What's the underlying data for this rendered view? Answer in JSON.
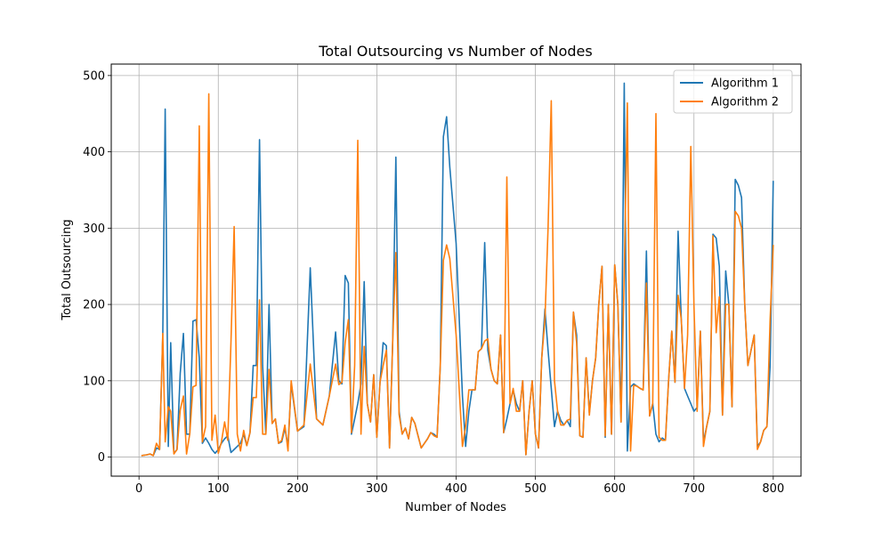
{
  "chart_data": {
    "type": "line",
    "title": "Total Outsourcing vs Number of Nodes",
    "xlabel": "Number of Nodes",
    "ylabel": "Total Outsourcing",
    "xlim": [
      -35,
      835
    ],
    "ylim": [
      -25,
      515
    ],
    "xticks": [
      0,
      100,
      200,
      300,
      400,
      500,
      600,
      700,
      800
    ],
    "yticks": [
      0,
      100,
      200,
      300,
      400,
      500
    ],
    "grid": true,
    "legend_position": "top-right",
    "series": [
      {
        "name": "Algorithm 1",
        "color": "#1f77b4",
        "x": [
          3,
          10,
          14,
          18,
          22,
          26,
          30,
          33,
          37,
          40,
          44,
          48,
          52,
          56,
          60,
          64,
          68,
          72,
          76,
          80,
          84,
          88,
          92,
          96,
          100,
          104,
          108,
          112,
          116,
          120,
          124,
          128,
          132,
          136,
          140,
          144,
          148,
          152,
          156,
          160,
          164,
          168,
          172,
          176,
          180,
          184,
          188,
          192,
          200,
          208,
          216,
          224,
          232,
          240,
          248,
          252,
          256,
          260,
          264,
          268,
          272,
          276,
          280,
          284,
          288,
          292,
          296,
          300,
          304,
          308,
          312,
          316,
          320,
          324,
          328,
          332,
          336,
          340,
          344,
          348,
          352,
          356,
          360,
          364,
          368,
          372,
          376,
          380,
          384,
          388,
          392,
          400,
          408,
          412,
          416,
          420,
          424,
          428,
          432,
          436,
          440,
          444,
          448,
          452,
          456,
          460,
          464,
          468,
          472,
          476,
          480,
          484,
          488,
          492,
          496,
          500,
          504,
          508,
          512,
          516,
          520,
          524,
          528,
          532,
          536,
          540,
          544,
          548,
          552,
          556,
          560,
          564,
          568,
          572,
          576,
          580,
          584,
          588,
          592,
          596,
          600,
          604,
          608,
          612,
          616,
          620,
          624,
          628,
          632,
          636,
          640,
          644,
          648,
          652,
          656,
          660,
          664,
          668,
          672,
          676,
          680,
          684,
          688,
          692,
          696,
          700,
          704,
          708,
          712,
          716,
          720,
          724,
          728,
          732,
          736,
          740,
          744,
          748,
          752,
          756,
          760,
          764,
          768,
          772,
          776,
          780,
          784,
          788,
          792,
          796,
          800
        ],
        "values": [
          2,
          3,
          4,
          2,
          12,
          10,
          160,
          456,
          14,
          150,
          5,
          10,
          110,
          162,
          30,
          30,
          178,
          180,
          130,
          18,
          25,
          18,
          10,
          5,
          10,
          18,
          24,
          28,
          6,
          10,
          14,
          18,
          30,
          15,
          32,
          120,
          120,
          416,
          120,
          30,
          200,
          44,
          50,
          18,
          20,
          38,
          14,
          96,
          34,
          40,
          248,
          50,
          42,
          80,
          164,
          100,
          96,
          238,
          228,
          30,
          50,
          70,
          96,
          230,
          70,
          46,
          108,
          26,
          98,
          150,
          146,
          12,
          150,
          393,
          60,
          30,
          38,
          24,
          52,
          44,
          28,
          12,
          18,
          24,
          32,
          30,
          26,
          120,
          420,
          446,
          380,
          280,
          80,
          14,
          60,
          88,
          88,
          138,
          142,
          281,
          140,
          115,
          100,
          96,
          160,
          32,
          50,
          70,
          88,
          70,
          60,
          100,
          3,
          60,
          100,
          30,
          12,
          130,
          194,
          140,
          90,
          40,
          60,
          48,
          42,
          48,
          40,
          190,
          160,
          28,
          26,
          130,
          58,
          100,
          130,
          200,
          250,
          26,
          200,
          30,
          252,
          200,
          46,
          490,
          8,
          92,
          96,
          93,
          90,
          88,
          270,
          54,
          70,
          30,
          20,
          25,
          22,
          100,
          165,
          98,
          296,
          180,
          90,
          80,
          70,
          60,
          65,
          165,
          20,
          40,
          60,
          292,
          287,
          250,
          55,
          244,
          200,
          66,
          364,
          356,
          340,
          200,
          120,
          140,
          160,
          14,
          20,
          35,
          40,
          120,
          362
        ]
      },
      {
        "name": "Algorithm 2",
        "color": "#ff7f0e",
        "x": [
          3,
          10,
          14,
          18,
          22,
          26,
          30,
          33,
          37,
          40,
          44,
          48,
          52,
          56,
          60,
          64,
          68,
          72,
          76,
          80,
          84,
          88,
          92,
          96,
          100,
          104,
          108,
          112,
          116,
          120,
          124,
          128,
          132,
          136,
          140,
          144,
          148,
          152,
          156,
          160,
          164,
          168,
          172,
          176,
          180,
          184,
          188,
          192,
          200,
          208,
          216,
          224,
          232,
          240,
          248,
          252,
          256,
          260,
          264,
          268,
          272,
          276,
          280,
          284,
          288,
          292,
          296,
          300,
          304,
          308,
          312,
          316,
          320,
          324,
          328,
          332,
          336,
          340,
          344,
          348,
          352,
          356,
          360,
          364,
          368,
          372,
          376,
          380,
          384,
          388,
          392,
          400,
          408,
          412,
          416,
          420,
          424,
          428,
          432,
          436,
          440,
          444,
          448,
          452,
          456,
          460,
          464,
          468,
          472,
          476,
          480,
          484,
          488,
          492,
          496,
          500,
          504,
          508,
          512,
          516,
          520,
          524,
          528,
          532,
          536,
          540,
          544,
          548,
          552,
          556,
          560,
          564,
          568,
          572,
          576,
          580,
          584,
          588,
          592,
          596,
          600,
          604,
          608,
          612,
          616,
          620,
          624,
          628,
          632,
          636,
          640,
          644,
          648,
          652,
          656,
          660,
          664,
          668,
          672,
          676,
          680,
          684,
          688,
          692,
          696,
          700,
          704,
          708,
          712,
          716,
          720,
          724,
          728,
          732,
          736,
          740,
          744,
          748,
          752,
          756,
          760,
          764,
          768,
          772,
          776,
          780,
          784,
          788,
          792,
          796,
          800
        ],
        "values": [
          2,
          3,
          4,
          2,
          18,
          10,
          162,
          20,
          66,
          60,
          4,
          10,
          62,
          80,
          4,
          30,
          92,
          94,
          434,
          20,
          40,
          476,
          22,
          55,
          5,
          20,
          46,
          22,
          150,
          302,
          30,
          8,
          35,
          15,
          32,
          78,
          78,
          206,
          30,
          30,
          115,
          44,
          50,
          18,
          22,
          42,
          8,
          100,
          34,
          42,
          122,
          50,
          42,
          80,
          122,
          95,
          98,
          150,
          180,
          32,
          120,
          415,
          30,
          145,
          70,
          46,
          108,
          26,
          98,
          120,
          140,
          12,
          150,
          268,
          56,
          30,
          38,
          24,
          52,
          44,
          28,
          12,
          18,
          24,
          32,
          28,
          26,
          120,
          258,
          278,
          260,
          160,
          14,
          40,
          88,
          88,
          88,
          138,
          142,
          152,
          155,
          115,
          100,
          96,
          160,
          32,
          367,
          70,
          90,
          60,
          60,
          100,
          3,
          60,
          100,
          30,
          12,
          130,
          180,
          300,
          467,
          100,
          60,
          42,
          42,
          48,
          50,
          190,
          150,
          28,
          26,
          130,
          55,
          100,
          130,
          200,
          250,
          28,
          200,
          30,
          252,
          200,
          46,
          240,
          464,
          8,
          94,
          93,
          90,
          88,
          228,
          54,
          70,
          450,
          26,
          22,
          22,
          100,
          165,
          98,
          212,
          180,
          90,
          160,
          407,
          200,
          60,
          165,
          14,
          40,
          60,
          290,
          163,
          210,
          55,
          200,
          200,
          66,
          322,
          316,
          300,
          200,
          120,
          140,
          160,
          10,
          20,
          35,
          40,
          180,
          278
        ]
      }
    ]
  }
}
